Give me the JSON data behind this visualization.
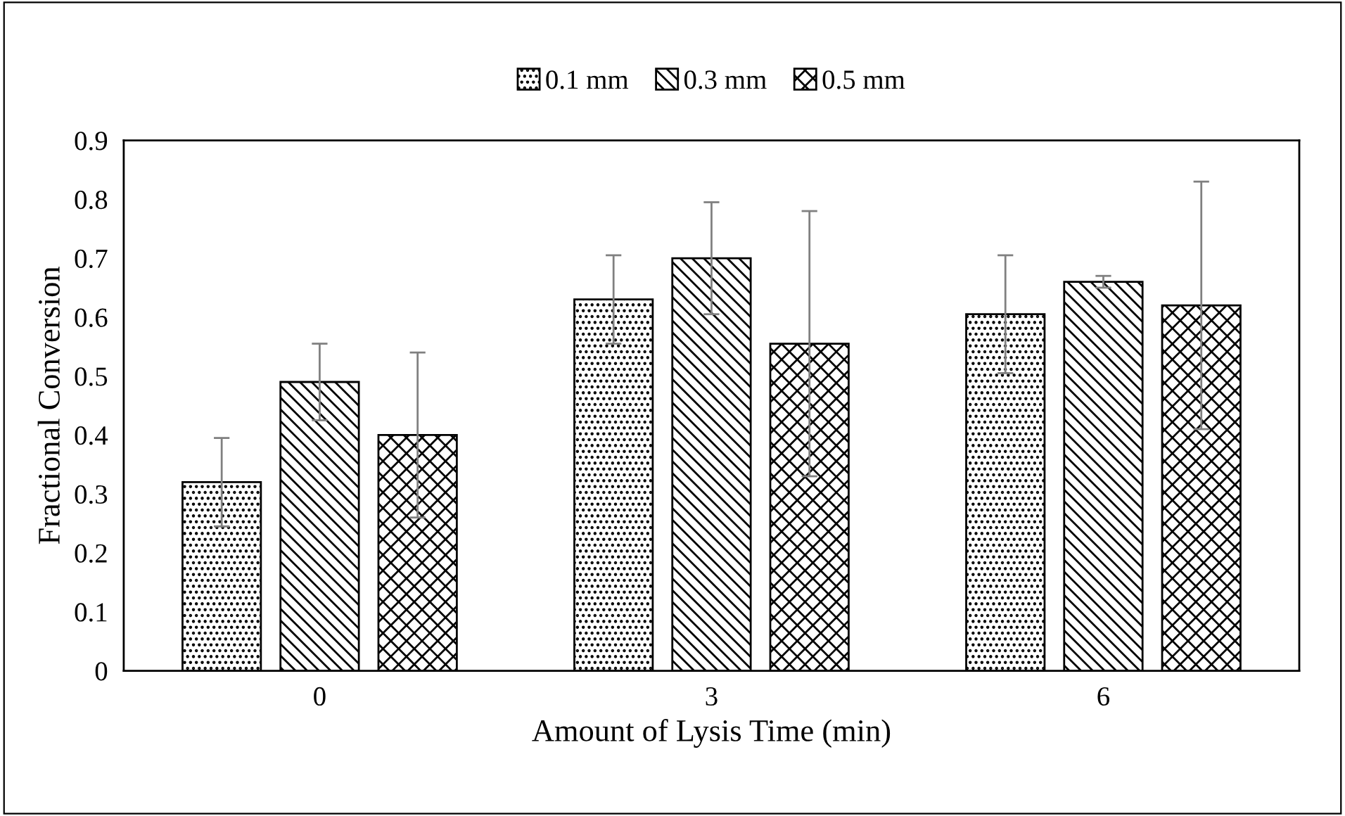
{
  "chart_data": {
    "type": "bar",
    "xlabel": "Amount of Lysis Time (min)",
    "ylabel": "Fractional Conversion",
    "categories": [
      "0",
      "3",
      "6"
    ],
    "series": [
      {
        "name": "0.1 mm",
        "color": "#000000",
        "values": [
          0.32,
          0.63,
          0.605
        ],
        "errors": [
          0.075,
          0.075,
          0.1
        ]
      },
      {
        "name": "0.3 mm",
        "color": "#000000",
        "values": [
          0.49,
          0.7,
          0.66
        ],
        "errors": [
          0.065,
          0.095,
          0.01
        ]
      },
      {
        "name": "0.5 mm",
        "color": "#000000",
        "values": [
          0.4,
          0.555,
          0.62
        ],
        "errors": [
          0.14,
          0.225,
          0.21
        ]
      }
    ],
    "ylim": [
      0,
      0.9
    ],
    "yticks": [
      0,
      0.1,
      0.2,
      0.3,
      0.4,
      0.5,
      0.6,
      0.7,
      0.8,
      0.9
    ],
    "grid": false,
    "legend": "top"
  }
}
